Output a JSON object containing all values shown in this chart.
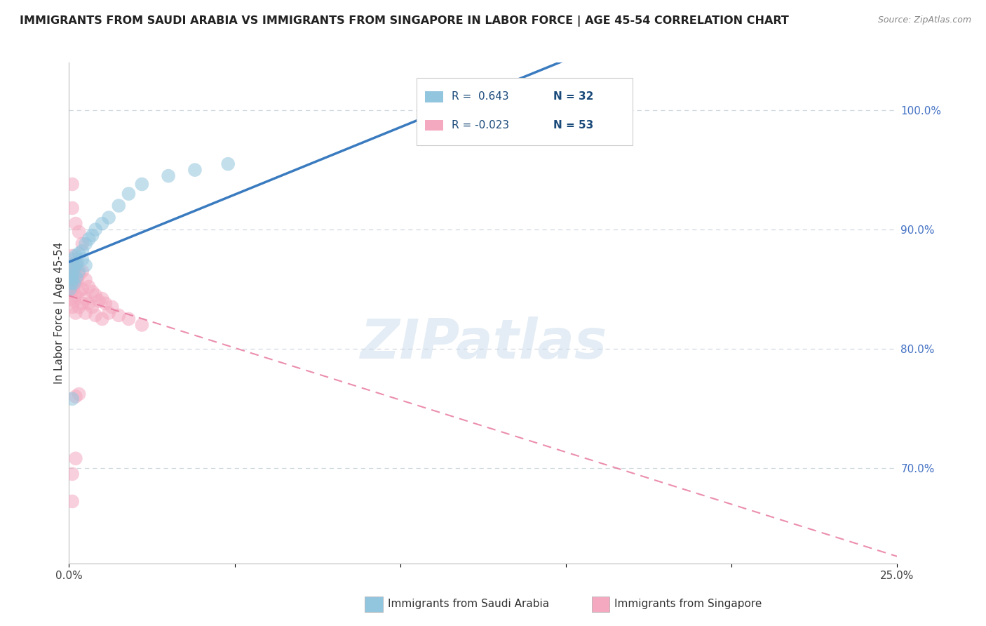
{
  "title": "IMMIGRANTS FROM SAUDI ARABIA VS IMMIGRANTS FROM SINGAPORE IN LABOR FORCE | AGE 45-54 CORRELATION CHART",
  "source": "Source: ZipAtlas.com",
  "ylabel": "In Labor Force | Age 45-54",
  "watermark": "ZIPatlas",
  "saudi_R": 0.643,
  "saudi_N": 32,
  "singapore_R": -0.023,
  "singapore_N": 53,
  "saudi_color": "#92c5de",
  "singapore_color": "#f4a9c0",
  "saudi_line_color": "#3a7bbf",
  "singapore_line_color": "#e87aa0",
  "xmin": 0.0,
  "xmax": 0.25,
  "ymin": 0.62,
  "ymax": 1.04,
  "grid_color": "#d0d8e0",
  "background_color": "#ffffff",
  "right_ytick_color": "#4472c4",
  "saudi_x": [
    0.0003,
    0.0005,
    0.0007,
    0.0008,
    0.001,
    0.001,
    0.0012,
    0.0013,
    0.0015,
    0.002,
    0.002,
    0.0022,
    0.0025,
    0.003,
    0.003,
    0.004,
    0.004,
    0.005,
    0.005,
    0.006,
    0.007,
    0.008,
    0.01,
    0.012,
    0.015,
    0.018,
    0.022,
    0.03,
    0.038,
    0.048,
    0.15,
    0.001
  ],
  "saudi_y": [
    0.85,
    0.86,
    0.855,
    0.862,
    0.87,
    0.858,
    0.875,
    0.865,
    0.855,
    0.87,
    0.878,
    0.86,
    0.872,
    0.88,
    0.865,
    0.882,
    0.875,
    0.888,
    0.87,
    0.892,
    0.895,
    0.9,
    0.905,
    0.91,
    0.92,
    0.93,
    0.938,
    0.945,
    0.95,
    0.955,
    1.0,
    0.758
  ],
  "singapore_x": [
    0.0003,
    0.0004,
    0.0005,
    0.0006,
    0.0007,
    0.0008,
    0.001,
    0.001,
    0.001,
    0.001,
    0.0012,
    0.0013,
    0.0015,
    0.0015,
    0.002,
    0.002,
    0.002,
    0.002,
    0.0025,
    0.003,
    0.003,
    0.003,
    0.004,
    0.004,
    0.004,
    0.005,
    0.005,
    0.005,
    0.006,
    0.006,
    0.007,
    0.007,
    0.008,
    0.008,
    0.009,
    0.01,
    0.01,
    0.011,
    0.012,
    0.013,
    0.015,
    0.018,
    0.022,
    0.001,
    0.001,
    0.002,
    0.003,
    0.004,
    0.001,
    0.002,
    0.001,
    0.002,
    0.003
  ],
  "singapore_y": [
    0.85,
    0.858,
    0.862,
    0.842,
    0.87,
    0.855,
    0.878,
    0.862,
    0.848,
    0.835,
    0.87,
    0.852,
    0.865,
    0.84,
    0.872,
    0.855,
    0.845,
    0.83,
    0.858,
    0.862,
    0.848,
    0.835,
    0.865,
    0.85,
    0.838,
    0.858,
    0.842,
    0.83,
    0.852,
    0.838,
    0.848,
    0.835,
    0.845,
    0.828,
    0.84,
    0.842,
    0.825,
    0.838,
    0.83,
    0.835,
    0.828,
    0.825,
    0.82,
    0.938,
    0.918,
    0.905,
    0.898,
    0.888,
    0.695,
    0.708,
    0.672,
    0.76,
    0.762
  ]
}
